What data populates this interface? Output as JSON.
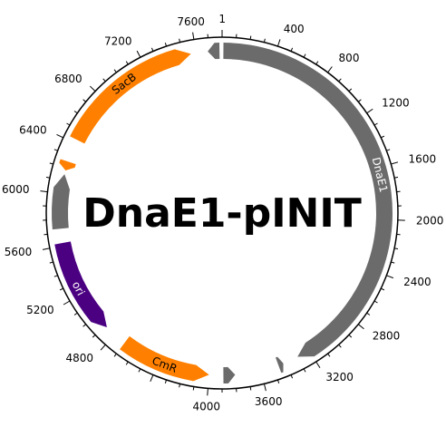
{
  "title": "DnaE1-pINIT",
  "total_length": 7800,
  "tick_labels": [
    "1",
    "400",
    "800",
    "1200",
    "1600",
    "2000",
    "2400",
    "2800",
    "3200",
    "3600",
    "4000",
    "4800",
    "5200",
    "5600",
    "6000",
    "6400",
    "6800",
    "7200",
    "7600"
  ],
  "features": [
    {
      "name": "DnaE1",
      "start": 10,
      "end": 3300,
      "strand": 1,
      "color": "#6b6b6b",
      "label": "DnaE1",
      "label_color": "#ffffff"
    },
    {
      "name": "CmR",
      "start": 4000,
      "end": 4700,
      "strand": -1,
      "color": "#ff8000",
      "label": "CmR",
      "label_color": "#000000"
    },
    {
      "name": "ori",
      "start": 4880,
      "end": 5620,
      "strand": -1,
      "color": "#4b0082",
      "label": "ori",
      "label_color": "#ffffff"
    },
    {
      "name": "SacB",
      "start": 6430,
      "end": 7560,
      "strand": 1,
      "color": "#ff8000",
      "label": "SacB",
      "label_color": "#000000"
    },
    {
      "name": "gray-5700",
      "start": 5730,
      "end": 6150,
      "strand": 1,
      "color": "#6b6b6b",
      "label": "",
      "label_color": "#ffffff"
    },
    {
      "name": "small-7700",
      "start": 7690,
      "end": 7780,
      "strand": -1,
      "color": "#6b6b6b",
      "label": "",
      "label_color": "#ffffff"
    },
    {
      "name": "small-6200",
      "start": 6180,
      "end": 6250,
      "strand": -1,
      "color": "#ff8000",
      "label": "",
      "label_color": "#ffffff"
    },
    {
      "name": "small-3850",
      "start": 3800,
      "end": 3890,
      "strand": -1,
      "color": "#6b6b6b",
      "label": "",
      "label_color": "#ffffff"
    },
    {
      "name": "small-3450",
      "start": 3420,
      "end": 3460,
      "strand": -1,
      "color": "#6b6b6b",
      "label": "",
      "label_color": "#ffffff"
    }
  ]
}
